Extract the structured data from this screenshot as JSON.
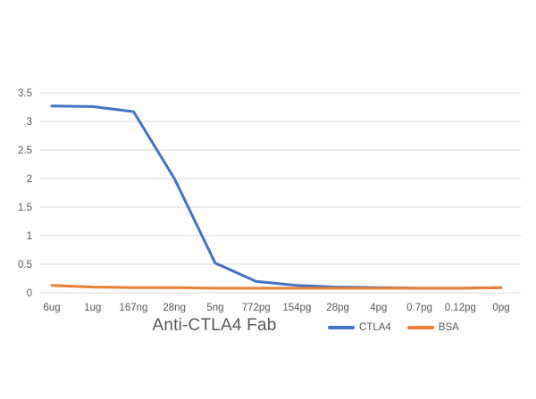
{
  "chart_data": {
    "type": "line",
    "title": "",
    "xlabel": "Anti-CTLA4 Fab",
    "ylabel": "",
    "categories": [
      "6ug",
      "1ug",
      "167ng",
      "28ng",
      "5ng",
      "772pg",
      "154pg",
      "28pg",
      "4pg",
      "0.7pg",
      "0.12pg",
      "0pg"
    ],
    "series": [
      {
        "name": "CTLA4",
        "color": "#4472C4",
        "values": [
          3.27,
          3.26,
          3.17,
          2.0,
          0.52,
          0.2,
          0.13,
          0.1,
          0.09,
          0.08,
          0.08,
          0.09
        ]
      },
      {
        "name": "BSA",
        "color": "#ED7D31",
        "values": [
          0.13,
          0.1,
          0.09,
          0.09,
          0.08,
          0.08,
          0.08,
          0.08,
          0.08,
          0.08,
          0.08,
          0.09
        ]
      }
    ],
    "ylim": [
      0,
      3.5
    ],
    "ytick_step": 0.5,
    "ytick_labels": [
      "0",
      "0.5",
      "1",
      "1.5",
      "2",
      "2.5",
      "3",
      "3.5"
    ],
    "grid": "horizontal",
    "gridline_color": "#D9D9D9",
    "axis_text_color": "#595959",
    "legend_position": "bottom-right"
  }
}
